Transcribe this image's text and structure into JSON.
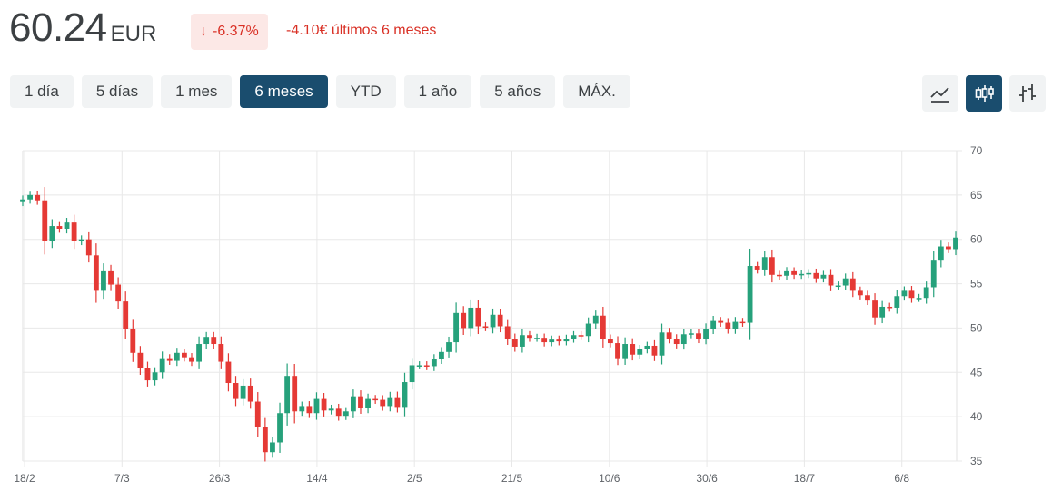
{
  "quote": {
    "price": "60.24",
    "currency": "EUR",
    "change_pct": "-6.37%",
    "change_abs": "-4.10€ últimos 6 meses",
    "change_color": "#d93025"
  },
  "ranges": [
    {
      "label": "1 día",
      "active": false
    },
    {
      "label": "5 días",
      "active": false
    },
    {
      "label": "1 mes",
      "active": false
    },
    {
      "label": "6 meses",
      "active": true
    },
    {
      "label": "YTD",
      "active": false
    },
    {
      "label": "1 año",
      "active": false
    },
    {
      "label": "5 años",
      "active": false
    },
    {
      "label": "MÁX.",
      "active": false
    }
  ],
  "chart_types": [
    {
      "icon": "line-chart-icon",
      "active": false
    },
    {
      "icon": "candlestick-icon",
      "active": true
    },
    {
      "icon": "ohlc-icon",
      "active": false
    }
  ],
  "colors": {
    "up": "#26a17b",
    "down": "#e53935",
    "accent": "#1a4d6e"
  },
  "chart_data": {
    "type": "candlestick",
    "ylim": [
      35,
      70
    ],
    "yticks": [
      35,
      40,
      45,
      50,
      55,
      60,
      65,
      70
    ],
    "xticks": [
      "18/2",
      "7/3",
      "26/3",
      "14/4",
      "2/5",
      "21/5",
      "10/6",
      "30/6",
      "18/7",
      "6/8"
    ],
    "grid": true,
    "closes": [
      64.5,
      65.0,
      64.4,
      59.8,
      61.5,
      61.2,
      61.9,
      59.8,
      60.0,
      58.2,
      54.2,
      56.4,
      54.9,
      53.0,
      49.9,
      47.2,
      45.5,
      44.1,
      45.0,
      46.6,
      46.3,
      47.2,
      46.7,
      46.2,
      48.2,
      49.0,
      48.2,
      46.2,
      43.8,
      42.0,
      43.5,
      41.7,
      38.8,
      36.0,
      37.1,
      40.4,
      44.6,
      40.6,
      41.2,
      40.4,
      42.0,
      40.7,
      40.9,
      40.1,
      40.6,
      42.3,
      41.0,
      42.0,
      41.9,
      41.2,
      42.2,
      41.1,
      43.9,
      45.8,
      45.8,
      45.7,
      46.5,
      47.3,
      48.4,
      51.7,
      50.0,
      52.3,
      50.2,
      50.1,
      51.5,
      50.2,
      48.8,
      47.9,
      49.2,
      48.9,
      48.9,
      48.4,
      48.7,
      48.5,
      48.8,
      49.2,
      49.1,
      50.5,
      51.4,
      48.8,
      48.3,
      46.6,
      48.2,
      47.0,
      47.6,
      48.0,
      46.9,
      49.5,
      48.8,
      48.2,
      49.3,
      49.4,
      48.8,
      49.9,
      50.8,
      50.6,
      49.9,
      50.7,
      50.6,
      57.0,
      56.6,
      58.0,
      56.0,
      55.9,
      56.4,
      56.0,
      56.1,
      56.2,
      55.6,
      56.0,
      54.8,
      54.8,
      55.6,
      54.2,
      53.7,
      53.1,
      51.2,
      52.4,
      52.3,
      53.6,
      54.2,
      53.4,
      53.4,
      54.6,
      57.6,
      59.2,
      58.9,
      60.2
    ]
  }
}
